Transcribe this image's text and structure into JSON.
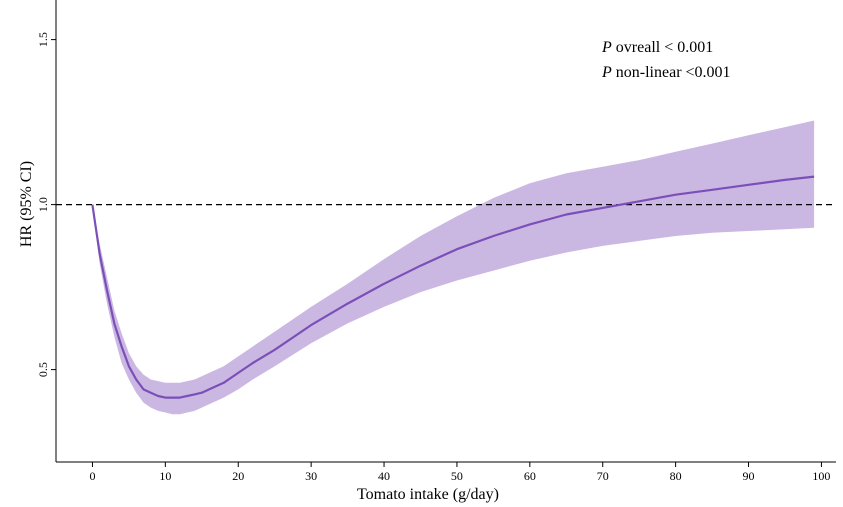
{
  "chart_data": {
    "type": "line",
    "title": "",
    "xlabel": "Tomato intake (g/day)",
    "ylabel": "HR (95% CI)",
    "xlim": [
      -5,
      102
    ],
    "ylim": [
      0.22,
      1.62
    ],
    "x_ticks": [
      0,
      10,
      20,
      30,
      40,
      50,
      60,
      70,
      80,
      90,
      100
    ],
    "x_tick_labels": [
      "0",
      "10",
      "20",
      "30",
      "40",
      "50",
      "60",
      "70",
      "80",
      "90",
      "100"
    ],
    "y_ticks": [
      0.5,
      1.0,
      1.5
    ],
    "y_tick_labels": [
      "0.5",
      "1.0",
      "1.5"
    ],
    "reference_line": {
      "y": 1.0,
      "style": "dashed"
    },
    "annotations": [
      {
        "italic": "P",
        "text": " ovreall < 0.001"
      },
      {
        "italic": "P",
        "text": " non-linear <0.001"
      }
    ],
    "series": [
      {
        "x": [
          0,
          1,
          2,
          3,
          4,
          5,
          6,
          7,
          8,
          9,
          10,
          11,
          12,
          13,
          14,
          15,
          16,
          18,
          20,
          22,
          25,
          30,
          35,
          40,
          45,
          50,
          55,
          60,
          65,
          70,
          75,
          80,
          85,
          90,
          95,
          99
        ],
        "y": [
          1.0,
          0.85,
          0.74,
          0.64,
          0.57,
          0.51,
          0.47,
          0.44,
          0.43,
          0.42,
          0.415,
          0.415,
          0.415,
          0.42,
          0.425,
          0.43,
          0.44,
          0.46,
          0.49,
          0.52,
          0.56,
          0.635,
          0.7,
          0.76,
          0.815,
          0.865,
          0.905,
          0.94,
          0.97,
          0.99,
          1.01,
          1.03,
          1.045,
          1.06,
          1.075,
          1.085
        ],
        "lower": [
          1.0,
          0.82,
          0.7,
          0.6,
          0.52,
          0.47,
          0.43,
          0.4,
          0.385,
          0.375,
          0.37,
          0.365,
          0.365,
          0.37,
          0.375,
          0.385,
          0.395,
          0.415,
          0.44,
          0.47,
          0.51,
          0.58,
          0.64,
          0.69,
          0.735,
          0.77,
          0.8,
          0.83,
          0.855,
          0.875,
          0.89,
          0.905,
          0.915,
          0.92,
          0.925,
          0.93
        ],
        "upper": [
          1.0,
          0.88,
          0.78,
          0.68,
          0.61,
          0.55,
          0.51,
          0.485,
          0.47,
          0.465,
          0.46,
          0.46,
          0.46,
          0.465,
          0.47,
          0.48,
          0.49,
          0.51,
          0.54,
          0.57,
          0.615,
          0.69,
          0.76,
          0.835,
          0.905,
          0.965,
          1.02,
          1.065,
          1.095,
          1.115,
          1.135,
          1.16,
          1.185,
          1.21,
          1.235,
          1.255
        ]
      }
    ],
    "colors": {
      "line": "#7b4fb8",
      "band": "#cbb8e2",
      "reference": "#000000"
    }
  }
}
